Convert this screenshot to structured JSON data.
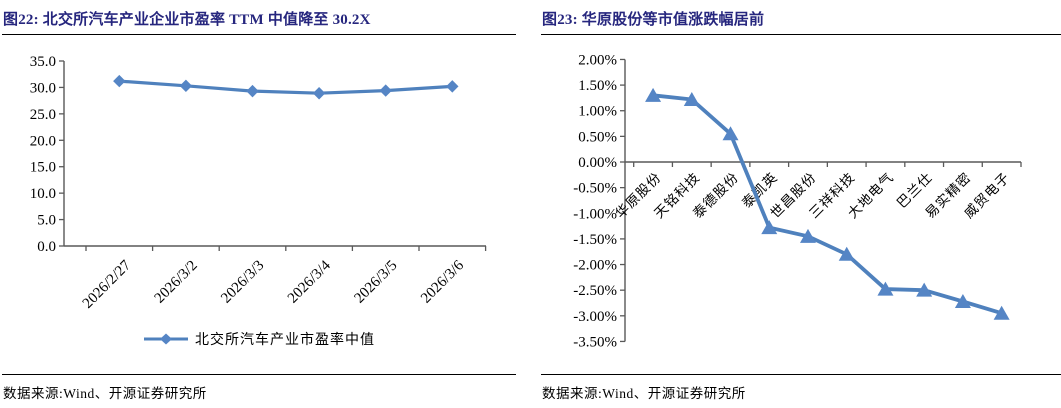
{
  "colors": {
    "accent_line": "#4F81BD",
    "marker_fill": "#5585C5",
    "title_text": "#26267E",
    "axis_line": "#595959",
    "label_text": "#000000"
  },
  "figures": [
    {
      "title": "图22: 北交所汽车产业企业市盈率 TTM 中值降至 30.2X",
      "legend_label": "北交所汽车产业市盈率中值",
      "source": "数据来源:Wind、开源证券研究所"
    },
    {
      "title": "图23: 华原股份等市值涨跌幅居前",
      "source": "数据来源:Wind、开源证券研究所"
    }
  ],
  "chart_data": [
    {
      "type": "line",
      "title": "北交所汽车产业企业市盈率TTM中值",
      "categories": [
        "2026/2/27",
        "2026/3/2",
        "2026/3/3",
        "2026/3/4",
        "2026/3/5",
        "2026/3/6"
      ],
      "series": [
        {
          "name": "北交所汽车产业市盈率中值",
          "values": [
            31.2,
            30.3,
            29.3,
            28.9,
            29.4,
            30.2
          ]
        }
      ],
      "ylim": [
        0,
        35
      ],
      "ytick_step": 5,
      "y_format": "fixed1",
      "marker": "diamond",
      "grid": false,
      "legend_position": "bottom",
      "xlabel": "",
      "ylabel": ""
    },
    {
      "type": "line",
      "title": "华原股份等市值涨跌幅居前",
      "categories": [
        "华原股份",
        "天铭科技",
        "泰德股份",
        "泰凯英",
        "世昌股份",
        "三祥科技",
        "大地电气",
        "巴兰仕",
        "易实精密",
        "威贸电子"
      ],
      "series": [
        {
          "name": "市值涨跌幅",
          "values": [
            1.3,
            1.22,
            0.55,
            -1.28,
            -1.45,
            -1.8,
            -2.48,
            -2.5,
            -2.72,
            -2.95
          ]
        }
      ],
      "ylim": [
        -3.5,
        2.0
      ],
      "ytick_step": 0.5,
      "y_format": "percent2",
      "marker": "triangle",
      "grid": false,
      "legend_position": "none",
      "xlabel": "",
      "ylabel": ""
    }
  ]
}
